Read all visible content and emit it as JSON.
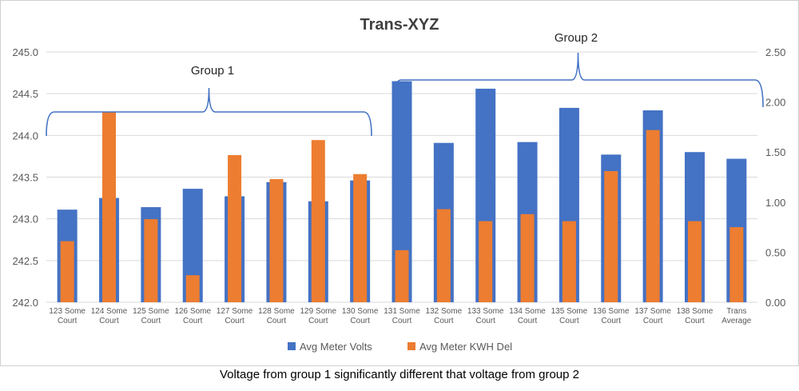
{
  "chart_data": {
    "type": "bar",
    "title": "Trans-XYZ",
    "categories": [
      [
        "123 Some",
        "Court"
      ],
      [
        "124 Some",
        "Court"
      ],
      [
        "125 Some",
        "Court"
      ],
      [
        "126 Some",
        "Court"
      ],
      [
        "127 Some",
        "Court"
      ],
      [
        "128 Some",
        "Court"
      ],
      [
        "129 Some",
        "Court"
      ],
      [
        "130 Some",
        "Court"
      ],
      [
        "131 Some",
        "Court"
      ],
      [
        "132 Some",
        "Court"
      ],
      [
        "133 Some",
        "Court"
      ],
      [
        "134 Some",
        "Court"
      ],
      [
        "135 Some",
        "Court"
      ],
      [
        "136 Some",
        "Court"
      ],
      [
        "137 Some",
        "Court"
      ],
      [
        "138 Some",
        "Court"
      ],
      [
        "Trans",
        "Average"
      ]
    ],
    "series": [
      {
        "name": "Avg Meter Volts",
        "axis": "left",
        "color": "#4472c4",
        "values": [
          243.11,
          243.25,
          243.14,
          243.36,
          243.27,
          243.44,
          243.21,
          243.46,
          244.65,
          243.91,
          244.56,
          243.92,
          244.33,
          243.77,
          244.3,
          243.8,
          243.72
        ]
      },
      {
        "name": "Avg Meter KWH Del",
        "axis": "right",
        "color": "#ed7d31",
        "values": [
          0.61,
          1.9,
          0.83,
          0.27,
          1.47,
          1.23,
          1.62,
          1.28,
          0.52,
          0.93,
          0.81,
          0.88,
          0.81,
          1.31,
          1.72,
          0.81,
          0.75
        ]
      }
    ],
    "y_left": {
      "min": 242.0,
      "max": 245.0,
      "step": 0.5,
      "ticks": [
        "242.0",
        "242.5",
        "243.0",
        "243.5",
        "244.0",
        "244.5",
        "245.0"
      ]
    },
    "y_right": {
      "min": 0,
      "max": 2.5,
      "step": 0.5,
      "ticks": [
        "0.00",
        "0.50",
        "1.00",
        "1.50",
        "2.00",
        "2.50"
      ]
    },
    "gridlines": true,
    "legend_position": "bottom",
    "annotations": [
      {
        "label": "Group 1",
        "from_category": 0,
        "to_category": 7
      },
      {
        "label": "Group 2",
        "from_category": 8,
        "to_category": 16
      }
    ]
  },
  "caption": "Voltage from group 1 significantly different that voltage from group 2"
}
